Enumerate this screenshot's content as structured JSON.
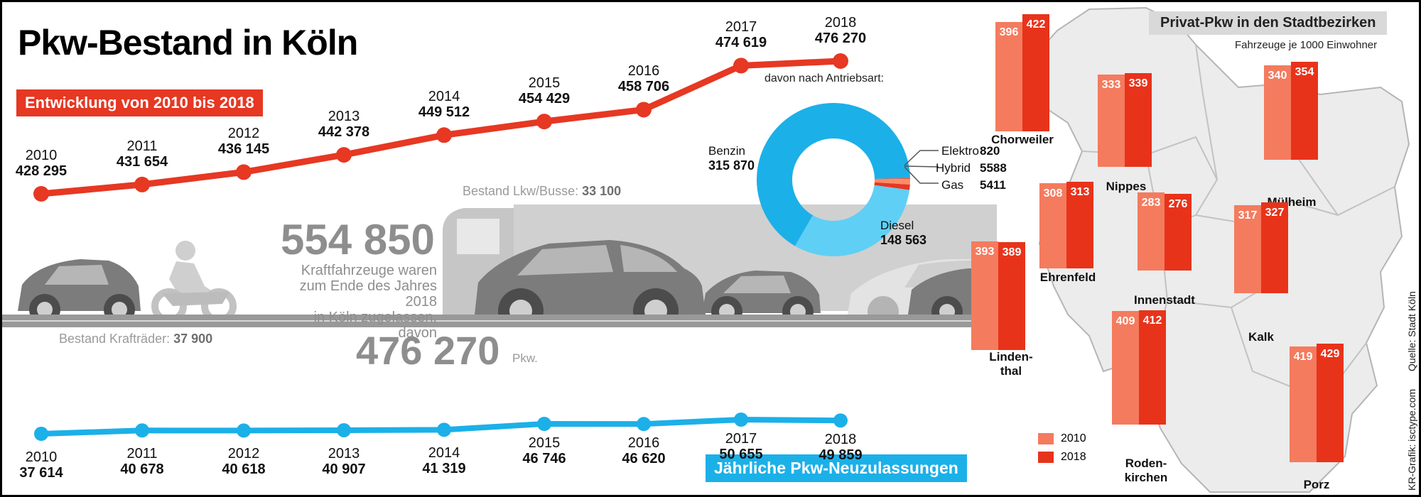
{
  "title": "Pkw-Bestand in Köln",
  "subtitle_red": "Entwicklung von 2010 bis 2018",
  "subtitle_blue": "Jährliche Pkw-Neuzulassungen",
  "colors": {
    "red": "#e63823",
    "blue": "#1cb0e8",
    "light_blue": "#5fcff5",
    "salmon": "#f47b5e",
    "map_red": "#e8331b",
    "gray": "#999999"
  },
  "totals": {
    "kfz_number": "554 850",
    "kfz_text": [
      "Kraftfahrzeuge waren",
      "zum Ende des Jahres 2018",
      "in Köln zugelassen, davon"
    ],
    "pkw_number": "476 270",
    "pkw_suffix": "Pkw.",
    "lkw_label": "Bestand Lkw/Busse:",
    "lkw_value": "33 100",
    "krad_label": "Bestand Krafträder:",
    "krad_value": "37 900"
  },
  "icons": [
    "car-icon",
    "motorcycle-icon",
    "truck-icon"
  ],
  "source": "Quelle: Stadt Köln",
  "credit": "KR-Grafik: isctype.com",
  "chart_data": [
    {
      "type": "line",
      "name": "bestand",
      "x": [
        "2010",
        "2011",
        "2012",
        "2013",
        "2014",
        "2015",
        "2016",
        "2017",
        "2018"
      ],
      "labels": [
        "428 295",
        "431 654",
        "436 145",
        "442 378",
        "449 512",
        "454 429",
        "458 706",
        "474 619",
        "476 270"
      ],
      "values": [
        428295,
        431654,
        436145,
        442378,
        449512,
        454429,
        458706,
        474619,
        476270
      ]
    },
    {
      "type": "pie",
      "name": "antriebsart",
      "title": "davon nach Antriebsart:",
      "slices": [
        {
          "label": "Benzin",
          "value": 315870,
          "display": "315 870",
          "color": "#1cb0e8"
        },
        {
          "label": "Diesel",
          "value": 148563,
          "display": "148 563",
          "color": "#5fcff5"
        },
        {
          "label": "Gas",
          "value": 5411,
          "display": "5411",
          "color": "#e63823"
        },
        {
          "label": "Hybrid",
          "value": 5588,
          "display": "5588",
          "color": "#ff8c66"
        },
        {
          "label": "Elektro",
          "value": 820,
          "display": "820",
          "color": "#ff4a2a"
        }
      ]
    },
    {
      "type": "line",
      "name": "neuzulassungen",
      "x": [
        "2010",
        "2011",
        "2012",
        "2013",
        "2014",
        "2015",
        "2016",
        "2017",
        "2018"
      ],
      "labels": [
        "37 614",
        "40 678",
        "40 618",
        "40 907",
        "41 319",
        "46 746",
        "46 620",
        "50 655",
        "49 859"
      ],
      "values": [
        37614,
        40678,
        40618,
        40907,
        41319,
        46746,
        46620,
        50655,
        49859
      ]
    },
    {
      "type": "bar",
      "name": "stadtbezirke",
      "title": "Privat-Pkw in den Stadtbezirken",
      "subtitle": "Fahrzeuge je 1000 Einwohner",
      "legend": [
        "2010",
        "2018"
      ],
      "districts": [
        {
          "name": "Chorweiler",
          "v2010": 396,
          "v2018": 422
        },
        {
          "name": "Nippes",
          "v2010": 333,
          "v2018": 339
        },
        {
          "name": "Mülheim",
          "v2010": 340,
          "v2018": 354
        },
        {
          "name": "Ehrenfeld",
          "v2010": 308,
          "v2018": 313
        },
        {
          "name": "Innenstadt",
          "v2010": 283,
          "v2018": 276
        },
        {
          "name": "Kalk",
          "v2010": 317,
          "v2018": 327
        },
        {
          "name": "Linden-\nthal",
          "v2010": 393,
          "v2018": 389
        },
        {
          "name": "Roden-\nkirchen",
          "v2010": 409,
          "v2018": 412
        },
        {
          "name": "Porz",
          "v2010": 419,
          "v2018": 429
        }
      ]
    }
  ]
}
